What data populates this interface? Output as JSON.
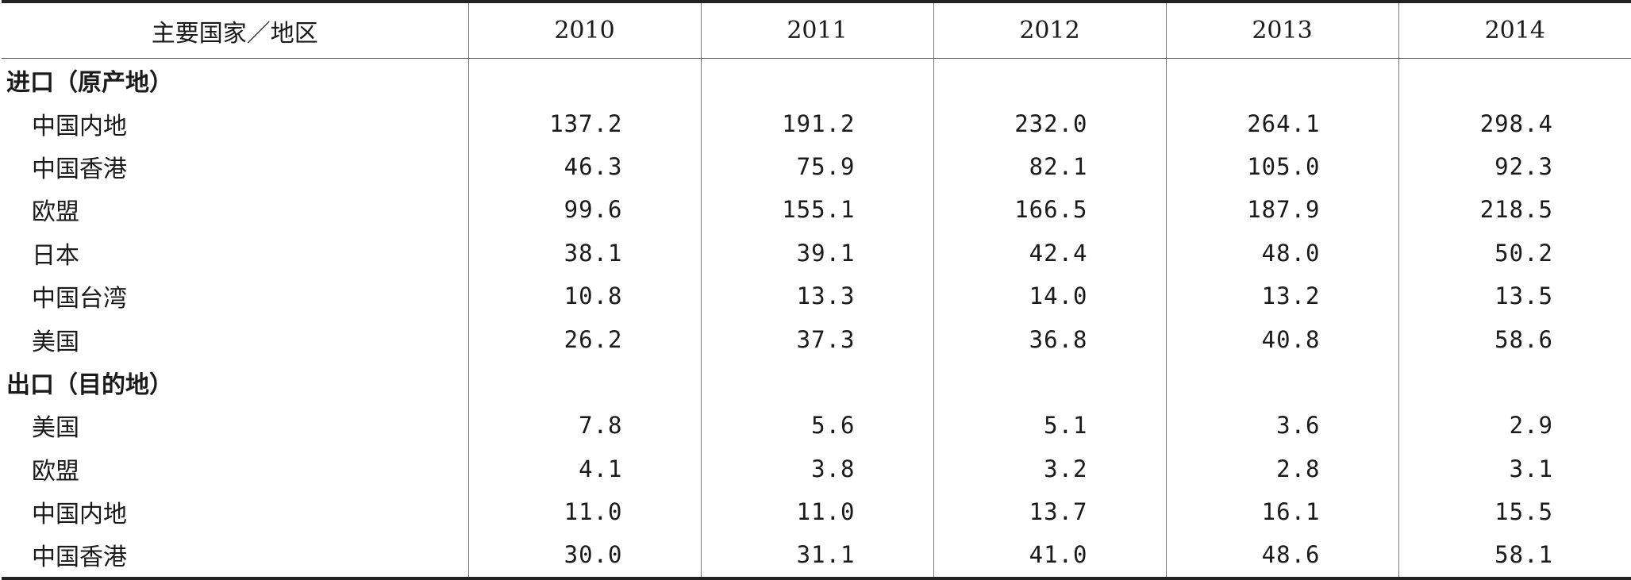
{
  "table": {
    "header": {
      "region_label": "主要国家／地区",
      "years": [
        "2010",
        "2011",
        "2012",
        "2013",
        "2014"
      ]
    },
    "sections": [
      {
        "title": "进口（原产地）",
        "rows": [
          {
            "name": "中国内地",
            "values": [
              "137.2",
              "191.2",
              "232.0",
              "264.1",
              "298.4"
            ]
          },
          {
            "name": "中国香港",
            "values": [
              "46.3",
              "75.9",
              "82.1",
              "105.0",
              "92.3"
            ]
          },
          {
            "name": "欧盟",
            "values": [
              "99.6",
              "155.1",
              "166.5",
              "187.9",
              "218.5"
            ]
          },
          {
            "name": "日本",
            "values": [
              "38.1",
              "39.1",
              "42.4",
              "48.0",
              "50.2"
            ]
          },
          {
            "name": "中国台湾",
            "values": [
              "10.8",
              "13.3",
              "14.0",
              "13.2",
              "13.5"
            ]
          },
          {
            "name": "美国",
            "values": [
              "26.2",
              "37.3",
              "36.8",
              "40.8",
              "58.6"
            ]
          }
        ]
      },
      {
        "title": "出口（目的地）",
        "rows": [
          {
            "name": "美国",
            "values": [
              "7.8",
              "5.6",
              "5.1",
              "3.6",
              "2.9"
            ]
          },
          {
            "name": "欧盟",
            "values": [
              "4.1",
              "3.8",
              "3.2",
              "2.8",
              "3.1"
            ]
          },
          {
            "name": "中国内地",
            "values": [
              "11.0",
              "11.0",
              "13.7",
              "16.1",
              "15.5"
            ]
          },
          {
            "name": "中国香港",
            "values": [
              "30.0",
              "31.1",
              "41.0",
              "48.6",
              "58.1"
            ]
          }
        ]
      }
    ]
  }
}
